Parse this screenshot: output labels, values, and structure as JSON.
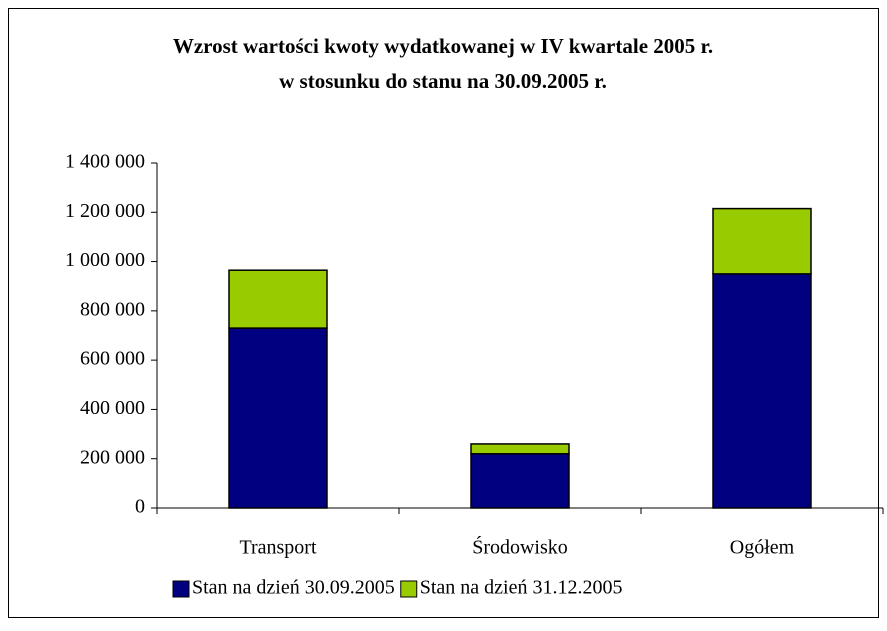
{
  "chart_data": {
    "type": "stacked_bar",
    "title": [
      "Wzrost wartości kwoty wydatkowanej w IV kwartale 2005 r.",
      "w stosunku do stanu na 30.09.2005 r."
    ],
    "categories": [
      "Transport",
      "Środowisko",
      "Ogółem"
    ],
    "series": [
      {
        "name": "Stan na dzień 30.09.2005",
        "color": "#000080",
        "values": [
          730000,
          220000,
          950000
        ]
      },
      {
        "name": "Stan na dzień 31.12.2005",
        "color": "#99cc00",
        "values": [
          235000,
          40000,
          265000
        ]
      }
    ],
    "ylim": [
      0,
      1400000
    ],
    "yticks": [
      0,
      {
        "value": 200000,
        "label": "200 000"
      },
      {
        "value": 400000,
        "label": "400 000"
      },
      {
        "value": 600000,
        "label": "600 000"
      },
      {
        "value": 800000,
        "label": "800 000"
      },
      {
        "value": 1000000,
        "label": "1 000 000"
      },
      {
        "value": 1200000,
        "label": "1 200 000"
      },
      {
        "value": 1400000,
        "label": "1 400 000"
      }
    ],
    "legend": "bottom"
  }
}
